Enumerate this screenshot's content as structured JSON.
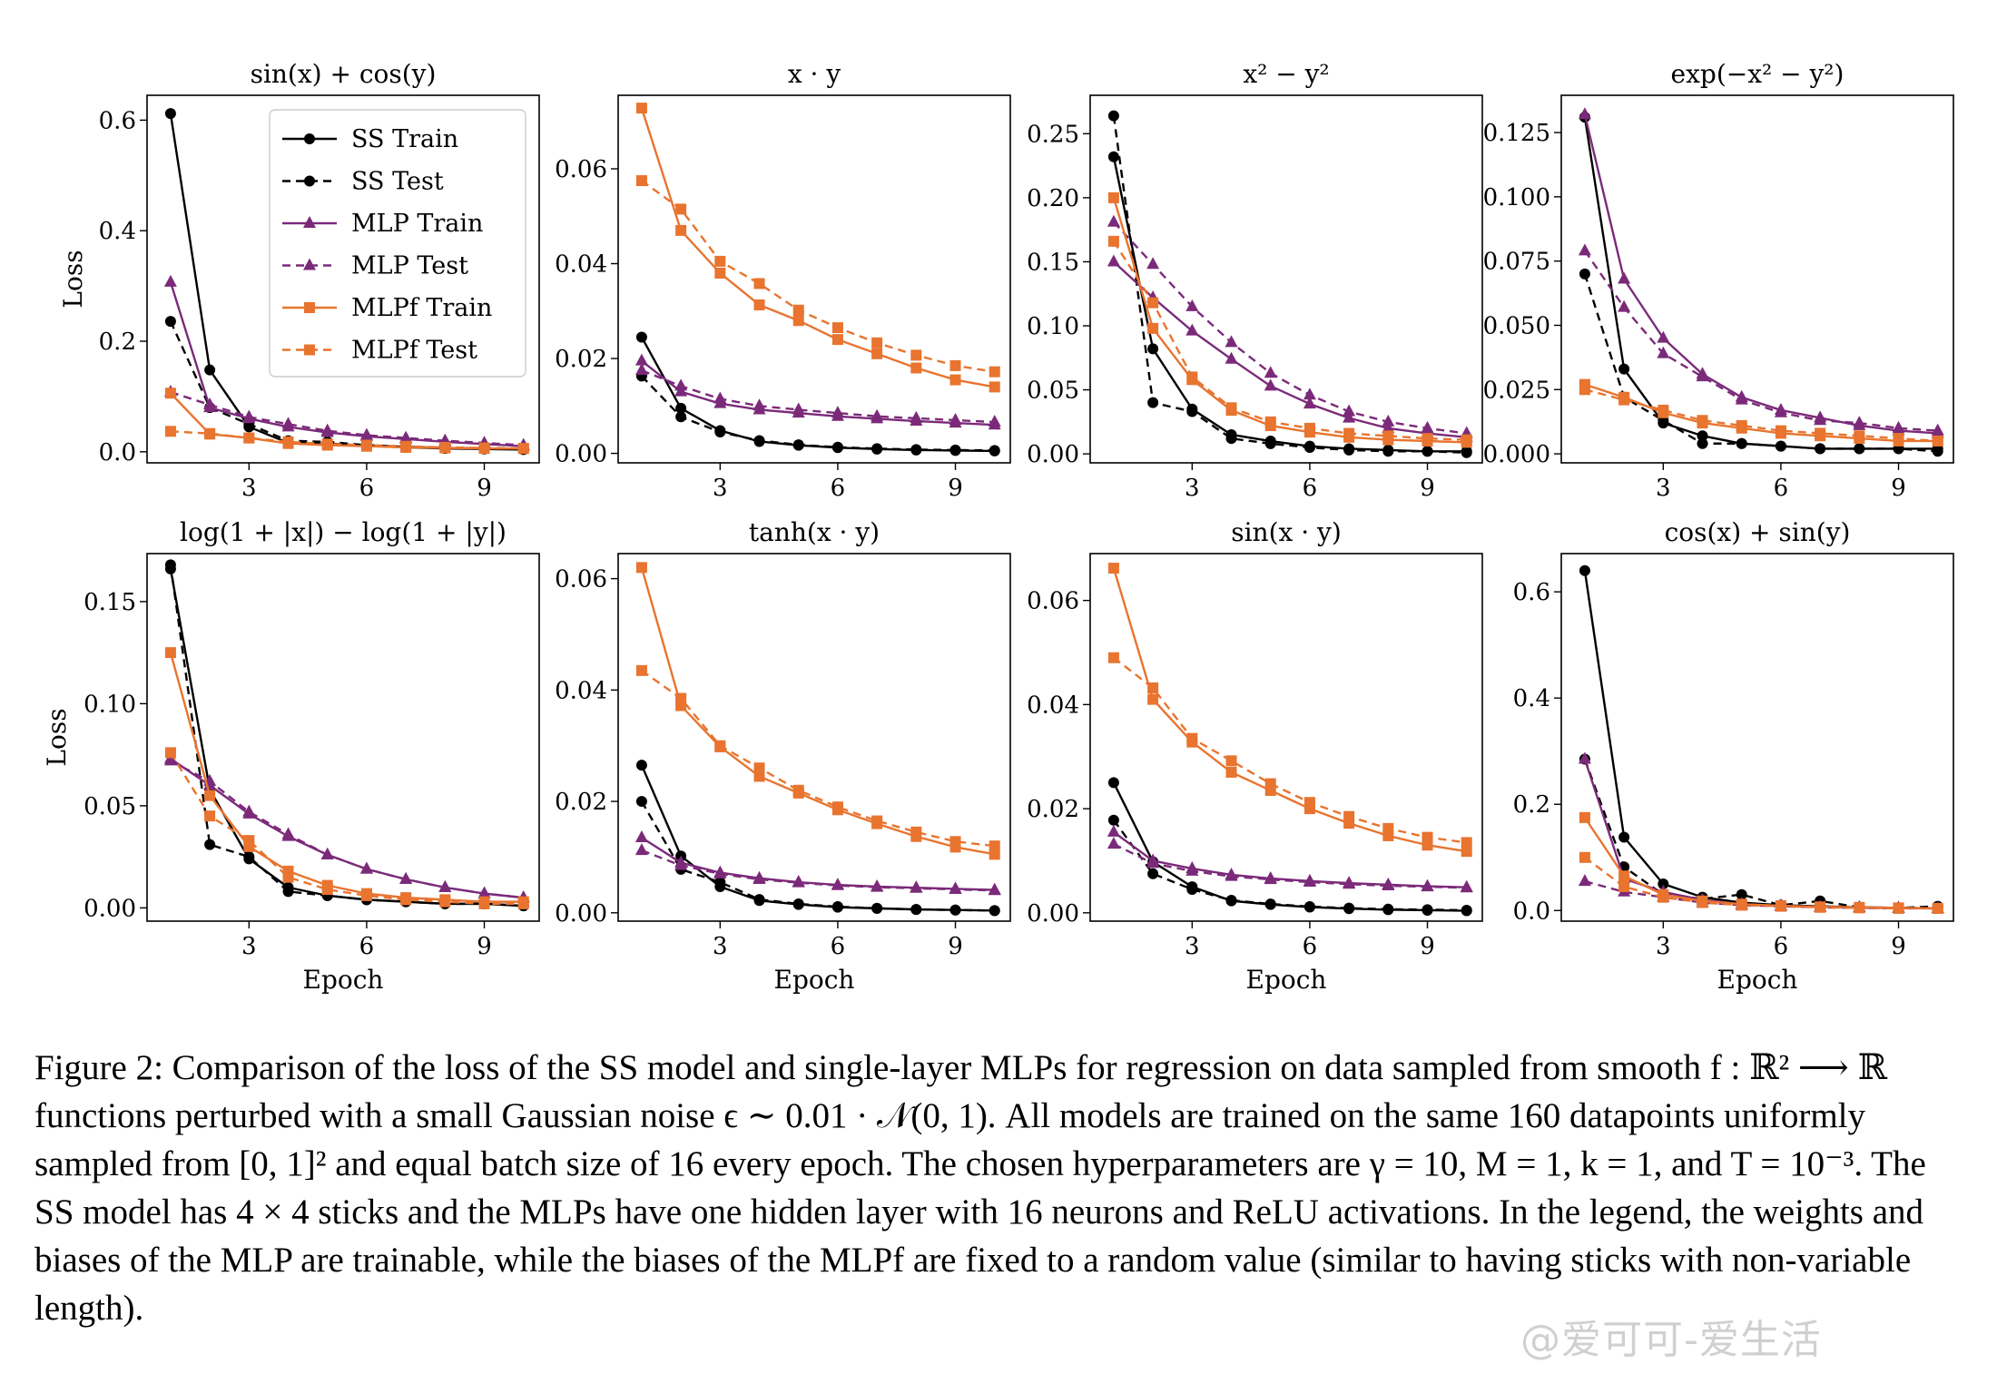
{
  "figure": {
    "caption_label": "Figure 2:",
    "caption": "Comparison of the loss of the SS model and single-layer MLPs for regression on data sampled from smooth f : ℝ² ⟶ ℝ functions perturbed with a small Gaussian noise ϵ ∼ 0.01 · 𝒩(0, 1). All models are trained on the same 160 datapoints uniformly sampled from [0, 1]² and equal batch size of 16 every epoch. The chosen hyperparameters are γ = 10, M = 1, k = 1, and T = 10⁻³. The SS model has 4 × 4 sticks and the MLPs have one hidden layer with 16 neurons and ReLU activations. In the legend, the weights and biases of the MLP are trainable, while the biases of the MLPf are fixed to a random value (similar to having sticks with non-variable length).",
    "watermark": "@爱可可-爱生活"
  },
  "colors": {
    "ss": "#000000",
    "mlp": "#7b2a7a",
    "mlpf": "#e8742f"
  },
  "legend": {
    "placement": "top-right of first panel",
    "entries": [
      {
        "name": "SS Train",
        "color": "#000000",
        "dash": false,
        "marker": "circle"
      },
      {
        "name": "SS Test",
        "color": "#000000",
        "dash": true,
        "marker": "circle"
      },
      {
        "name": "MLP Train",
        "color": "#7b2a7a",
        "dash": false,
        "marker": "triangle"
      },
      {
        "name": "MLP Test",
        "color": "#7b2a7a",
        "dash": true,
        "marker": "triangle"
      },
      {
        "name": "MLPf Train",
        "color": "#e8742f",
        "dash": false,
        "marker": "square"
      },
      {
        "name": "MLPf Test",
        "color": "#e8742f",
        "dash": true,
        "marker": "square"
      }
    ]
  },
  "chart_data": [
    {
      "type": "line",
      "title": "sin(x) + cos(y)",
      "xlabel": "",
      "ylabel": "Loss",
      "x": [
        1,
        2,
        3,
        4,
        5,
        6,
        7,
        8,
        9,
        10
      ],
      "xlim": [
        0.4,
        10.4
      ],
      "xticks": [
        3,
        6,
        9
      ],
      "ylim": [
        -0.02,
        0.645
      ],
      "yticks": [
        0.0,
        0.2,
        0.4,
        0.6
      ],
      "ytick_labels": [
        "0.0",
        "0.2",
        "0.4",
        "0.6"
      ],
      "series": [
        {
          "name": "SS Train",
          "values": [
            0.612,
            0.148,
            0.045,
            0.016,
            0.015,
            0.011,
            0.008,
            0.006,
            0.005,
            0.004
          ]
        },
        {
          "name": "SS Test",
          "values": [
            0.236,
            0.08,
            0.05,
            0.02,
            0.018,
            0.012,
            0.009,
            0.007,
            0.006,
            0.005
          ]
        },
        {
          "name": "MLP Train",
          "values": [
            0.307,
            0.08,
            0.06,
            0.045,
            0.035,
            0.028,
            0.023,
            0.018,
            0.014,
            0.01
          ]
        },
        {
          "name": "MLP Test",
          "values": [
            0.108,
            0.085,
            0.063,
            0.05,
            0.038,
            0.03,
            0.025,
            0.02,
            0.016,
            0.012
          ]
        },
        {
          "name": "MLPf Train",
          "values": [
            0.106,
            0.032,
            0.025,
            0.015,
            0.012,
            0.01,
            0.008,
            0.007,
            0.006,
            0.006
          ]
        },
        {
          "name": "MLPf Test",
          "values": [
            0.037,
            0.033,
            0.025,
            0.018,
            0.014,
            0.012,
            0.01,
            0.008,
            0.007,
            0.006
          ]
        }
      ]
    },
    {
      "type": "line",
      "title": "x · y",
      "xlabel": "",
      "ylabel": "",
      "x": [
        1,
        2,
        3,
        4,
        5,
        6,
        7,
        8,
        9,
        10
      ],
      "xlim": [
        0.4,
        10.4
      ],
      "xticks": [
        3,
        6,
        9
      ],
      "ylim": [
        -0.002,
        0.0755
      ],
      "yticks": [
        0.0,
        0.02,
        0.04,
        0.06
      ],
      "ytick_labels": [
        "0.00",
        "0.02",
        "0.04",
        "0.06"
      ],
      "series": [
        {
          "name": "SS Train",
          "values": [
            0.0245,
            0.0095,
            0.0048,
            0.0025,
            0.0017,
            0.0012,
            0.0009,
            0.0007,
            0.0006,
            0.0005
          ]
        },
        {
          "name": "SS Test",
          "values": [
            0.0163,
            0.0077,
            0.0045,
            0.0027,
            0.0018,
            0.0013,
            0.001,
            0.0008,
            0.0007,
            0.0006
          ]
        },
        {
          "name": "MLP Train",
          "values": [
            0.0195,
            0.013,
            0.0105,
            0.0092,
            0.0085,
            0.0078,
            0.0073,
            0.0068,
            0.0064,
            0.006
          ]
        },
        {
          "name": "MLP Test",
          "values": [
            0.0175,
            0.0142,
            0.0115,
            0.01,
            0.0092,
            0.0085,
            0.0078,
            0.0074,
            0.007,
            0.0066
          ]
        },
        {
          "name": "MLPf Train",
          "values": [
            0.0728,
            0.047,
            0.038,
            0.0313,
            0.028,
            0.024,
            0.021,
            0.018,
            0.0155,
            0.014
          ]
        },
        {
          "name": "MLPf Test",
          "values": [
            0.0575,
            0.0515,
            0.0405,
            0.0358,
            0.0302,
            0.0265,
            0.0233,
            0.0207,
            0.0185,
            0.0172
          ]
        }
      ]
    },
    {
      "type": "line",
      "title": "x² − y²",
      "xlabel": "",
      "ylabel": "",
      "x": [
        1,
        2,
        3,
        4,
        5,
        6,
        7,
        8,
        9,
        10
      ],
      "xlim": [
        0.4,
        10.4
      ],
      "xticks": [
        3,
        6,
        9
      ],
      "ylim": [
        -0.007,
        0.28
      ],
      "yticks": [
        0.0,
        0.05,
        0.1,
        0.15,
        0.2,
        0.25
      ],
      "ytick_labels": [
        "0.00",
        "0.05",
        "0.10",
        "0.15",
        "0.20",
        "0.25"
      ],
      "series": [
        {
          "name": "SS Train",
          "values": [
            0.232,
            0.082,
            0.035,
            0.015,
            0.01,
            0.006,
            0.004,
            0.003,
            0.002,
            0.002
          ]
        },
        {
          "name": "SS Test",
          "values": [
            0.264,
            0.04,
            0.033,
            0.012,
            0.008,
            0.005,
            0.003,
            0.002,
            0.002,
            0.001
          ]
        },
        {
          "name": "MLP Train",
          "values": [
            0.15,
            0.122,
            0.096,
            0.074,
            0.053,
            0.039,
            0.028,
            0.02,
            0.016,
            0.013
          ]
        },
        {
          "name": "MLP Test",
          "values": [
            0.181,
            0.148,
            0.115,
            0.087,
            0.063,
            0.046,
            0.033,
            0.025,
            0.02,
            0.016
          ]
        },
        {
          "name": "MLPf Train",
          "values": [
            0.2,
            0.098,
            0.058,
            0.034,
            0.022,
            0.017,
            0.013,
            0.011,
            0.01,
            0.009
          ]
        },
        {
          "name": "MLPf Test",
          "values": [
            0.166,
            0.118,
            0.06,
            0.036,
            0.025,
            0.02,
            0.016,
            0.014,
            0.012,
            0.011
          ]
        }
      ]
    },
    {
      "type": "line",
      "title": "exp(−x² − y²)",
      "xlabel": "",
      "ylabel": "",
      "x": [
        1,
        2,
        3,
        4,
        5,
        6,
        7,
        8,
        9,
        10
      ],
      "xlim": [
        0.4,
        10.4
      ],
      "xticks": [
        3,
        6,
        9
      ],
      "ylim": [
        -0.0035,
        0.1395
      ],
      "yticks": [
        0.0,
        0.025,
        0.05,
        0.075,
        0.1,
        0.125
      ],
      "ytick_labels": [
        "0.000",
        "0.025",
        "0.050",
        "0.075",
        "0.100",
        "0.125"
      ],
      "series": [
        {
          "name": "SS Train",
          "values": [
            0.131,
            0.033,
            0.012,
            0.007,
            0.004,
            0.003,
            0.002,
            0.002,
            0.002,
            0.002
          ]
        },
        {
          "name": "SS Test",
          "values": [
            0.07,
            0.022,
            0.013,
            0.004,
            0.004,
            0.003,
            0.002,
            0.002,
            0.002,
            0.001
          ]
        },
        {
          "name": "MLP Train",
          "values": [
            0.132,
            0.068,
            0.045,
            0.031,
            0.022,
            0.017,
            0.014,
            0.011,
            0.009,
            0.008
          ]
        },
        {
          "name": "MLP Test",
          "values": [
            0.079,
            0.057,
            0.039,
            0.03,
            0.021,
            0.016,
            0.013,
            0.012,
            0.01,
            0.009
          ]
        },
        {
          "name": "MLPf Train",
          "values": [
            0.027,
            0.022,
            0.016,
            0.012,
            0.01,
            0.008,
            0.007,
            0.006,
            0.005,
            0.005
          ]
        },
        {
          "name": "MLPf Test",
          "values": [
            0.025,
            0.021,
            0.017,
            0.013,
            0.011,
            0.009,
            0.008,
            0.007,
            0.006,
            0.005
          ]
        }
      ]
    },
    {
      "type": "line",
      "title": "log(1 + |x|) − log(1 + |y|)",
      "xlabel": "Epoch",
      "ylabel": "Loss",
      "x": [
        1,
        2,
        3,
        4,
        5,
        6,
        7,
        8,
        9,
        10
      ],
      "xlim": [
        0.4,
        10.4
      ],
      "xticks": [
        3,
        6,
        9
      ],
      "ylim": [
        -0.0065,
        0.1735
      ],
      "yticks": [
        0.0,
        0.05,
        0.1,
        0.15
      ],
      "ytick_labels": [
        "0.00",
        "0.05",
        "0.10",
        "0.15"
      ],
      "series": [
        {
          "name": "SS Train",
          "values": [
            0.166,
            0.058,
            0.024,
            0.01,
            0.006,
            0.004,
            0.003,
            0.002,
            0.002,
            0.001
          ]
        },
        {
          "name": "SS Test",
          "values": [
            0.168,
            0.031,
            0.025,
            0.008,
            0.006,
            0.004,
            0.003,
            0.002,
            0.002,
            0.001
          ]
        },
        {
          "name": "MLP Train",
          "values": [
            0.073,
            0.06,
            0.046,
            0.035,
            0.026,
            0.019,
            0.014,
            0.01,
            0.007,
            0.005
          ]
        },
        {
          "name": "MLP Test",
          "values": [
            0.072,
            0.062,
            0.047,
            0.036,
            0.026,
            0.019,
            0.014,
            0.01,
            0.007,
            0.005
          ]
        },
        {
          "name": "MLPf Train",
          "values": [
            0.125,
            0.055,
            0.03,
            0.018,
            0.011,
            0.007,
            0.005,
            0.004,
            0.003,
            0.003
          ]
        },
        {
          "name": "MLPf Test",
          "values": [
            0.076,
            0.045,
            0.033,
            0.015,
            0.009,
            0.006,
            0.004,
            0.003,
            0.002,
            0.002
          ]
        }
      ]
    },
    {
      "type": "line",
      "title": "tanh(x · y)",
      "xlabel": "Epoch",
      "ylabel": "",
      "x": [
        1,
        2,
        3,
        4,
        5,
        6,
        7,
        8,
        9,
        10
      ],
      "xlim": [
        0.4,
        10.4
      ],
      "xticks": [
        3,
        6,
        9
      ],
      "ylim": [
        -0.0015,
        0.0645
      ],
      "yticks": [
        0.0,
        0.02,
        0.04,
        0.06
      ],
      "ytick_labels": [
        "0.00",
        "0.02",
        "0.04",
        "0.06"
      ],
      "series": [
        {
          "name": "SS Train",
          "values": [
            0.0265,
            0.0102,
            0.0047,
            0.0022,
            0.0015,
            0.001,
            0.0008,
            0.0006,
            0.0005,
            0.0004
          ]
        },
        {
          "name": "SS Test",
          "values": [
            0.02,
            0.0078,
            0.0055,
            0.0024,
            0.0016,
            0.0011,
            0.0008,
            0.0006,
            0.0005,
            0.0004
          ]
        },
        {
          "name": "MLP Train",
          "values": [
            0.0135,
            0.009,
            0.0072,
            0.0062,
            0.0055,
            0.005,
            0.0047,
            0.0045,
            0.0043,
            0.0041
          ]
        },
        {
          "name": "MLP Test",
          "values": [
            0.0112,
            0.0085,
            0.007,
            0.006,
            0.0054,
            0.0049,
            0.0046,
            0.0044,
            0.0042,
            0.004
          ]
        },
        {
          "name": "MLPf Train",
          "values": [
            0.062,
            0.0372,
            0.0298,
            0.0245,
            0.0215,
            0.0185,
            0.016,
            0.0137,
            0.0118,
            0.0105
          ]
        },
        {
          "name": "MLPf Test",
          "values": [
            0.0435,
            0.0385,
            0.03,
            0.026,
            0.022,
            0.019,
            0.0165,
            0.0145,
            0.0128,
            0.012
          ]
        }
      ]
    },
    {
      "type": "line",
      "title": "sin(x · y)",
      "xlabel": "Epoch",
      "ylabel": "",
      "x": [
        1,
        2,
        3,
        4,
        5,
        6,
        7,
        8,
        9,
        10
      ],
      "xlim": [
        0.4,
        10.4
      ],
      "xticks": [
        3,
        6,
        9
      ],
      "ylim": [
        -0.0016,
        0.069
      ],
      "yticks": [
        0.0,
        0.02,
        0.04,
        0.06
      ],
      "ytick_labels": [
        "0.00",
        "0.02",
        "0.04",
        "0.06"
      ],
      "series": [
        {
          "name": "SS Train",
          "values": [
            0.025,
            0.0098,
            0.005,
            0.0023,
            0.0016,
            0.0011,
            0.0008,
            0.0006,
            0.0005,
            0.0004
          ]
        },
        {
          "name": "SS Test",
          "values": [
            0.0178,
            0.0075,
            0.0045,
            0.0024,
            0.0017,
            0.0012,
            0.0009,
            0.0007,
            0.0006,
            0.0005
          ]
        },
        {
          "name": "MLP Train",
          "values": [
            0.0155,
            0.01,
            0.0085,
            0.0073,
            0.0066,
            0.0061,
            0.0057,
            0.0054,
            0.0051,
            0.0049
          ]
        },
        {
          "name": "MLP Test",
          "values": [
            0.0132,
            0.0095,
            0.008,
            0.007,
            0.0064,
            0.0059,
            0.0055,
            0.0052,
            0.005,
            0.0048
          ]
        },
        {
          "name": "MLPf Train",
          "values": [
            0.0662,
            0.041,
            0.0328,
            0.027,
            0.0235,
            0.02,
            0.0172,
            0.0148,
            0.013,
            0.0118
          ]
        },
        {
          "name": "MLPf Test",
          "values": [
            0.049,
            0.0432,
            0.0335,
            0.0292,
            0.0248,
            0.0212,
            0.0185,
            0.0162,
            0.0145,
            0.0135
          ]
        }
      ]
    },
    {
      "type": "line",
      "title": "cos(x) + sin(y)",
      "xlabel": "Epoch",
      "ylabel": "",
      "x": [
        1,
        2,
        3,
        4,
        5,
        6,
        7,
        8,
        9,
        10
      ],
      "xlim": [
        0.4,
        10.4
      ],
      "xticks": [
        3,
        6,
        9
      ],
      "ylim": [
        -0.02,
        0.672
      ],
      "yticks": [
        0.0,
        0.2,
        0.4,
        0.6
      ],
      "ytick_labels": [
        "0.0",
        "0.2",
        "0.4",
        "0.6"
      ],
      "series": [
        {
          "name": "SS Train",
          "values": [
            0.64,
            0.138,
            0.05,
            0.025,
            0.015,
            0.01,
            0.008,
            0.006,
            0.005,
            0.004
          ]
        },
        {
          "name": "SS Test",
          "values": [
            0.285,
            0.082,
            0.03,
            0.022,
            0.03,
            0.01,
            0.018,
            0.006,
            0.005,
            0.008
          ]
        },
        {
          "name": "MLP Train",
          "values": [
            0.285,
            0.06,
            0.035,
            0.02,
            0.012,
            0.009,
            0.007,
            0.006,
            0.005,
            0.004
          ]
        },
        {
          "name": "MLP Test",
          "values": [
            0.055,
            0.035,
            0.025,
            0.015,
            0.01,
            0.008,
            0.006,
            0.005,
            0.004,
            0.004
          ]
        },
        {
          "name": "MLPf Train",
          "values": [
            0.175,
            0.065,
            0.03,
            0.018,
            0.012,
            0.009,
            0.007,
            0.006,
            0.005,
            0.004
          ]
        },
        {
          "name": "MLPf Test",
          "values": [
            0.1,
            0.045,
            0.025,
            0.015,
            0.01,
            0.008,
            0.006,
            0.005,
            0.004,
            0.004
          ]
        }
      ]
    }
  ]
}
